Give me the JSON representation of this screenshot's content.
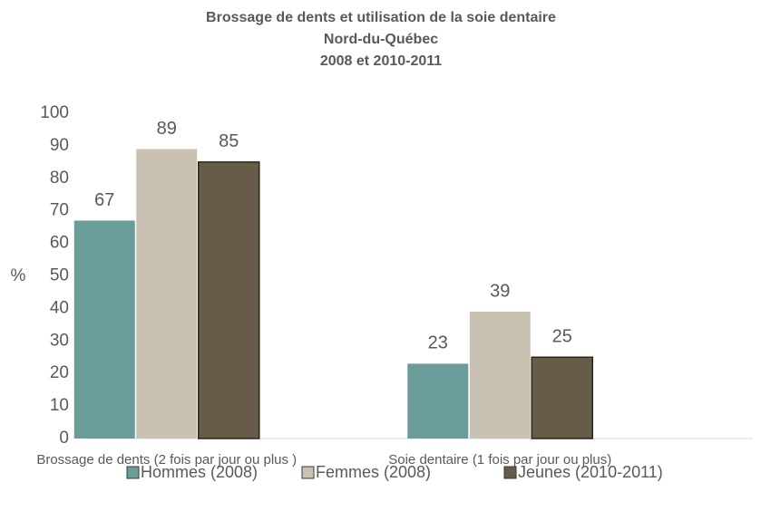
{
  "chart_data": {
    "type": "bar",
    "title": [
      "Brossage de dents et utilisation de la soie dentaire",
      "Nord-du-Québec",
      "2008 et 2010-2011"
    ],
    "ylabel": "%",
    "categories": [
      "Brossage de dents (2 fois par jour ou plus )",
      "Soie dentaire (1 fois par jour ou plus)"
    ],
    "series": [
      {
        "name": "Hommes (2008)",
        "color": "#6a9d99",
        "values": [
          67,
          23
        ]
      },
      {
        "name": "Femmes (2008)",
        "color": "#c9c1b1",
        "values": [
          89,
          39
        ]
      },
      {
        "name": "Jeunes (2010-2011)",
        "color": "#665c47",
        "values": [
          85,
          25
        ]
      }
    ],
    "ylim": [
      0,
      100
    ],
    "yticks": [
      0,
      10,
      20,
      30,
      40,
      50,
      60,
      70,
      80,
      90,
      100
    ],
    "grid": false,
    "legend": "bottom"
  }
}
